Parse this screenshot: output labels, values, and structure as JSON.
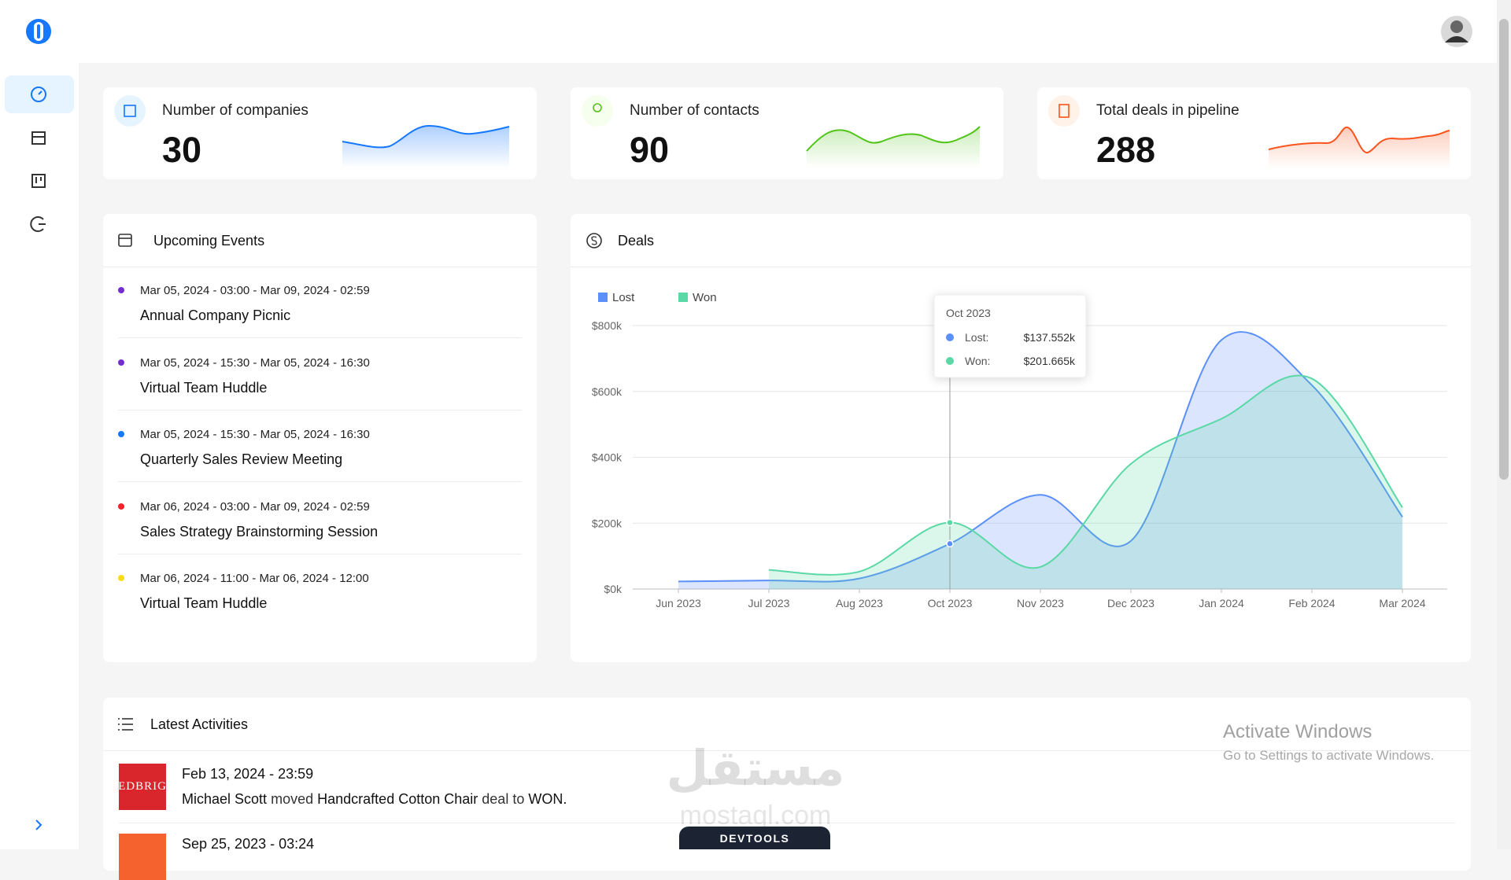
{
  "kpis": [
    {
      "label": "Number of companies",
      "value": 30
    },
    {
      "label": "Number of contacts",
      "value": 90
    },
    {
      "label": "Total deals in pipeline",
      "value": 288
    }
  ],
  "upcoming_events": {
    "title": "Upcoming Events",
    "items": [
      {
        "date": "Mar 05, 2024 - 03:00 - Mar 09, 2024 - 02:59",
        "title": "Annual Company Picnic",
        "color": "#722ed1"
      },
      {
        "date": "Mar 05, 2024 - 15:30 - Mar 05, 2024 - 16:30",
        "title": "Virtual Team Huddle",
        "color": "#722ed1"
      },
      {
        "date": "Mar 05, 2024 - 15:30 - Mar 05, 2024 - 16:30",
        "title": "Quarterly Sales Review Meeting",
        "color": "#1677ff"
      },
      {
        "date": "Mar 06, 2024 - 03:00 - Mar 09, 2024 - 02:59",
        "title": "Sales Strategy Brainstorming Session",
        "color": "#f5222d"
      },
      {
        "date": "Mar 06, 2024 - 11:00 - Mar 06, 2024 - 12:00",
        "title": "Virtual Team Huddle",
        "color": "#fadb14"
      }
    ]
  },
  "deals": {
    "title": "Deals",
    "chart_data": {
      "type": "area",
      "categories": [
        "Jun 2023",
        "Jul 2023",
        "Aug 2023",
        "Oct 2023",
        "Nov 2023",
        "Dec 2023",
        "Jan 2024",
        "Feb 2024",
        "Mar 2024"
      ],
      "series": [
        {
          "name": "Lost",
          "color": "#5b8ff9",
          "values": [
            23000,
            26000,
            32000,
            137552,
            286000,
            146000,
            756000,
            619000,
            219000
          ],
          "value_labels": [
            null,
            null,
            null,
            "$137.552k",
            null,
            null,
            null,
            null,
            null
          ]
        },
        {
          "name": "Won",
          "color": "#5ad8a6",
          "values": [
            null,
            58000,
            53000,
            201665,
            67000,
            380000,
            517000,
            639000,
            248000
          ],
          "value_labels": [
            null,
            null,
            null,
            "$201.665k",
            null,
            null,
            null,
            null,
            null
          ]
        }
      ],
      "ylim": [
        0,
        800000
      ],
      "yticks": [
        {
          "value": 0,
          "label": "$0k"
        },
        {
          "value": 200000,
          "label": "$200k"
        },
        {
          "value": 400000,
          "label": "$400k"
        },
        {
          "value": 600000,
          "label": "$600k"
        },
        {
          "value": 800000,
          "label": "$800k"
        }
      ],
      "grid": true,
      "legend": "top-left",
      "tooltip": {
        "title": "Oct 2023",
        "items": [
          "Lost:",
          "Won:"
        ]
      }
    }
  },
  "latest_activities": {
    "title": "Latest Activities",
    "items": [
      {
        "logo": "EDBRIG",
        "date": "Feb 13, 2024 - 23:59",
        "user": "Michael Scott",
        "action": "moved",
        "deal": "Handcrafted Cotton Chair",
        "connector": "deal to",
        "stage": "WON."
      },
      {
        "date": "Sep 25, 2023 - 03:24"
      }
    ]
  },
  "overlays": {
    "windows_title": "Activate Windows",
    "windows_subtitle": "Go to Settings to activate Windows.",
    "brand_arabic": "مستقل",
    "brand_latin": "mostaql.com",
    "devtools": "DEVTOOLS"
  }
}
